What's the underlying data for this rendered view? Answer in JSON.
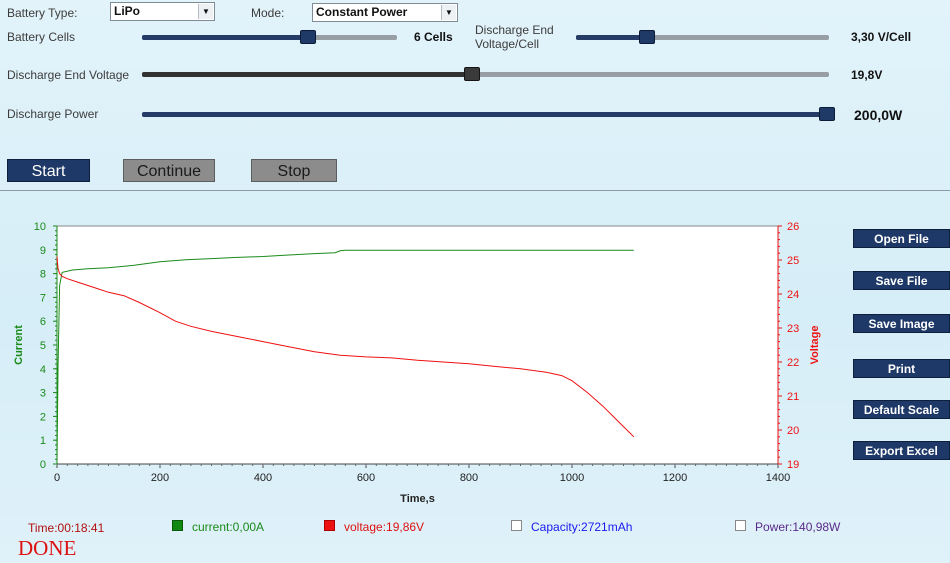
{
  "settings": {
    "battery_type_label": "Battery Type:",
    "battery_type_value": "LiPo",
    "mode_label": "Mode:",
    "mode_value": "Constant Power",
    "cells_label": "Battery Cells",
    "cells_value": "6 Cells",
    "cells_level": 0.65,
    "end_voltage_cell_label_1": "Discharge End",
    "end_voltage_cell_label_2": "Voltage/Cell",
    "end_voltage_cell_value": "3,30 V/Cell",
    "end_voltage_cell_level": 0.28,
    "end_voltage_label": "Discharge End Voltage",
    "end_voltage_value": "19,8V",
    "end_voltage_level": 0.48,
    "power_label": "Discharge Power",
    "power_value": "200,0W",
    "power_level": 1.0
  },
  "buttons": {
    "start": "Start",
    "continue": "Continue",
    "stop": "Stop"
  },
  "side_buttons": [
    "Open File",
    "Save File",
    "Save Image",
    "Print",
    "Default Scale",
    "Export Excel"
  ],
  "status": {
    "time": "Time:00:18:41",
    "current": "current:0,00A",
    "voltage": "voltage:19,86V",
    "capacity": "Capacity:2721mAh",
    "power": "Power:140,98W",
    "state": "DONE"
  },
  "colors": {
    "current": "#1a8a1a",
    "voltage": "#ee1111",
    "capacity_text": "#1a1aee",
    "power_text": "#5a2a8a",
    "button": "#1e3967"
  },
  "chart_data": {
    "type": "line",
    "xlabel": "Time,s",
    "ylabel_left": "Current",
    "ylabel_right": "Voltage",
    "xlim": [
      0,
      1400
    ],
    "ylim_left": [
      0,
      10
    ],
    "ylim_right": [
      19,
      26
    ],
    "x_ticks": [
      0,
      200,
      400,
      600,
      800,
      1000,
      1200,
      1400
    ],
    "y_ticks_left": [
      0,
      1,
      2,
      3,
      4,
      5,
      6,
      7,
      8,
      9,
      10
    ],
    "y_ticks_right": [
      19,
      20,
      21,
      22,
      23,
      24,
      25,
      26
    ],
    "grid": false,
    "series": [
      {
        "name": "current",
        "axis": "left",
        "x": [
          0,
          2,
          5,
          10,
          30,
          60,
          100,
          150,
          200,
          250,
          300,
          350,
          400,
          450,
          500,
          540,
          550,
          560,
          600,
          700,
          800,
          900,
          1000,
          1100,
          1120
        ],
        "y": [
          0,
          4,
          7.5,
          8.05,
          8.15,
          8.2,
          8.25,
          8.35,
          8.5,
          8.58,
          8.63,
          8.68,
          8.72,
          8.78,
          8.84,
          8.88,
          8.96,
          8.98,
          8.98,
          8.98,
          8.98,
          8.98,
          8.98,
          8.98,
          8.98
        ]
      },
      {
        "name": "voltage",
        "axis": "right",
        "x": [
          0,
          2,
          5,
          10,
          20,
          40,
          60,
          80,
          100,
          130,
          160,
          200,
          230,
          260,
          300,
          350,
          400,
          450,
          500,
          550,
          600,
          650,
          700,
          750,
          800,
          850,
          900,
          950,
          980,
          1000,
          1030,
          1060,
          1080,
          1100,
          1120
        ],
        "y": [
          25.1,
          24.75,
          24.6,
          24.52,
          24.45,
          24.35,
          24.25,
          24.15,
          24.05,
          23.95,
          23.75,
          23.45,
          23.2,
          23.05,
          22.9,
          22.75,
          22.6,
          22.45,
          22.3,
          22.2,
          22.15,
          22.12,
          22.05,
          22.0,
          21.95,
          21.87,
          21.8,
          21.7,
          21.6,
          21.45,
          21.1,
          20.7,
          20.4,
          20.1,
          19.8
        ]
      }
    ]
  }
}
